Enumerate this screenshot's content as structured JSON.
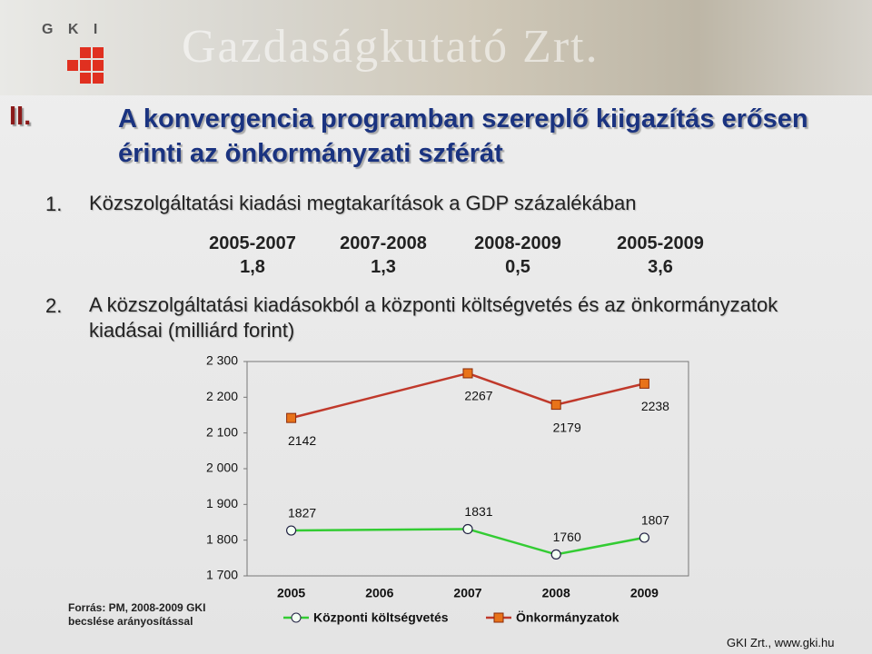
{
  "header": {
    "logo": "G K I",
    "banner": "Gazdaságkutató Zrt."
  },
  "title": {
    "number": "II.",
    "text": "A konvergencia programban szereplő kiigazítás erősen érinti az önkormányzati szférát"
  },
  "items": [
    {
      "number": "1.",
      "text": "Közszolgáltatási kiadási megtakarítások a GDP százalékában"
    },
    {
      "number": "2.",
      "text": "A közszolgáltatási kiadásokból a központi költségvetés és az önkormányzatok kiadásai (milliárd forint)"
    }
  ],
  "table": {
    "headers": [
      "2005-2007",
      "2007-2008",
      "2008-2009",
      "2005-2009"
    ],
    "values": [
      "1,8",
      "1,3",
      "0,5",
      "3,6"
    ]
  },
  "chart_data": {
    "type": "line",
    "x": [
      2005,
      2007,
      2008,
      2009
    ],
    "xlim": [
      2004.5,
      2009.5
    ],
    "xticks": [
      2005,
      2006,
      2007,
      2008,
      2009
    ],
    "ylim": [
      1700,
      2300
    ],
    "yticks": [
      {
        "value": 1700,
        "label": "1 700"
      },
      {
        "value": 1800,
        "label": "1 800"
      },
      {
        "value": 1900,
        "label": "1 900"
      },
      {
        "value": 2000,
        "label": "2 000"
      },
      {
        "value": 2100,
        "label": "2 100"
      },
      {
        "value": 2200,
        "label": "2 200"
      },
      {
        "value": 2300,
        "label": "2 300"
      }
    ],
    "series": [
      {
        "name": "Központi költségvetés",
        "color": "#33cc33",
        "values": [
          1827,
          1831,
          1760,
          1807
        ]
      },
      {
        "name": "Önkormányzatok",
        "color": "#e8731a",
        "values": [
          2142,
          2267,
          2179,
          2238
        ]
      }
    ]
  },
  "source": "Forrás: PM, 2008-2009 GKI becslése arányosítással",
  "footer": "GKI Zrt., www.gki.hu"
}
